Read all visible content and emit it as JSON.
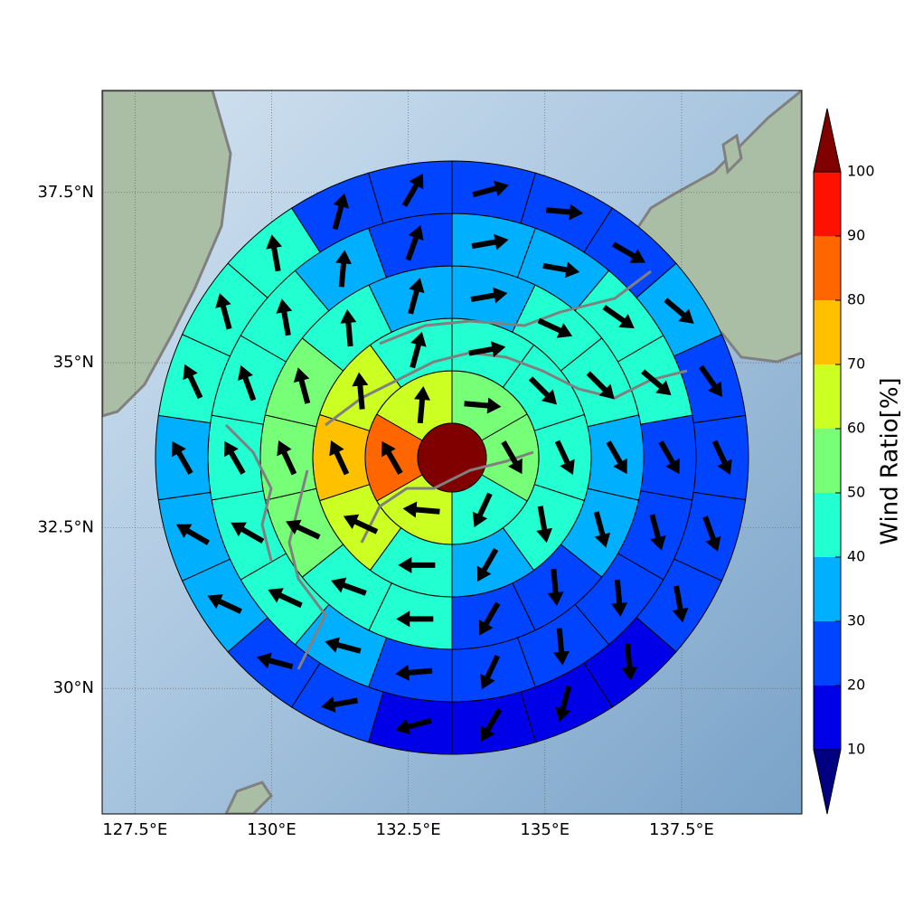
{
  "chart_data": {
    "type": "polar-sectors",
    "projection": "mercator",
    "xlim": [
      126.9,
      139.7
    ],
    "ylim": [
      28.0,
      38.96
    ],
    "xticks": [
      {
        "value": 127.5,
        "label": "127.5°E"
      },
      {
        "value": 130,
        "label": "130°E"
      },
      {
        "value": 132.5,
        "label": "132.5°E"
      },
      {
        "value": 135,
        "label": "135°E"
      },
      {
        "value": 137.5,
        "label": "137.5°E"
      }
    ],
    "yticks": [
      {
        "value": 30,
        "label": "30°N"
      },
      {
        "value": 32.5,
        "label": "32.5°N"
      },
      {
        "value": 35,
        "label": "35°N"
      },
      {
        "value": 37.5,
        "label": "37.5°N"
      }
    ],
    "grid": true,
    "colorbar": {
      "label": "Wind Ratio[%]",
      "ticks": [
        10,
        20,
        30,
        40,
        50,
        60,
        70,
        80,
        90,
        100
      ],
      "colors": [
        "#0000e8",
        "#0044ff",
        "#00b0ff",
        "#22ffd0",
        "#77ff77",
        "#ccff22",
        "#ffc000",
        "#ff6600",
        "#ff1100"
      ],
      "under_color": "#000080",
      "over_color": "#800000"
    },
    "center_value": 105,
    "rings": [
      {
        "values": [
          55,
          55,
          45,
          65,
          85,
          65
        ],
        "directions": [
          95,
          150,
          205,
          275,
          330,
          5
        ]
      },
      {
        "values": [
          45,
          45,
          45,
          45,
          35,
          45,
          65,
          75,
          65,
          45
        ],
        "directions": [
          80,
          135,
          155,
          170,
          210,
          270,
          295,
          335,
          355,
          15
        ]
      },
      {
        "values": [
          35,
          45,
          45,
          35,
          35,
          25,
          25,
          45,
          45,
          55,
          55,
          55,
          45,
          35
        ],
        "directions": [
          80,
          115,
          135,
          150,
          165,
          175,
          210,
          270,
          290,
          295,
          335,
          345,
          355,
          15
        ]
      },
      {
        "values": [
          35,
          35,
          45,
          45,
          25,
          25,
          25,
          25,
          25,
          25,
          35,
          45,
          45,
          45,
          45,
          45,
          35,
          25
        ],
        "directions": [
          80,
          100,
          125,
          130,
          150,
          165,
          175,
          175,
          205,
          265,
          285,
          295,
          300,
          330,
          340,
          350,
          5,
          20
        ]
      },
      {
        "values": [
          25,
          25,
          25,
          35,
          25,
          25,
          25,
          25,
          15,
          15,
          15,
          15,
          25,
          25,
          35,
          35,
          35,
          45,
          45,
          45,
          25,
          25
        ],
        "directions": [
          75,
          95,
          120,
          130,
          145,
          155,
          160,
          170,
          175,
          195,
          210,
          255,
          260,
          285,
          295,
          300,
          330,
          335,
          345,
          350,
          15,
          30
        ]
      }
    ]
  }
}
